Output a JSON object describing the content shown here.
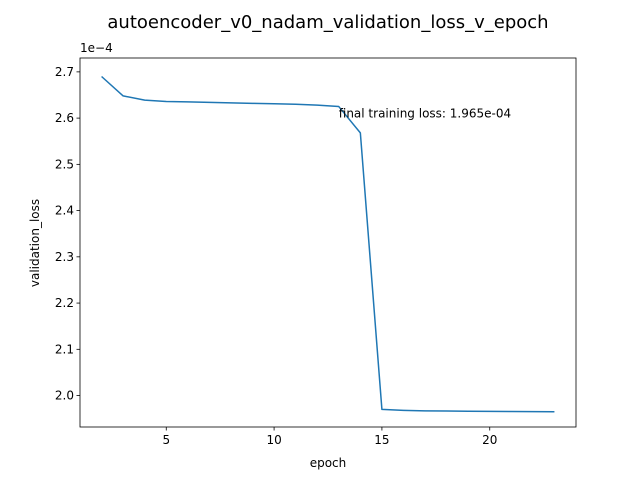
{
  "chart_data": {
    "type": "line",
    "title": "autoencoder_v0_nadam_validation_loss_v_epoch",
    "xlabel": "epoch",
    "ylabel": "validation_loss",
    "y_multiplier_label": "1e−4",
    "xlim": [
      1.0,
      24.0
    ],
    "ylim": [
      1.932,
      2.73
    ],
    "x_ticks": [
      5,
      10,
      15,
      20
    ],
    "x_tick_labels": [
      "5",
      "10",
      "15",
      "20"
    ],
    "y_ticks": [
      2.0,
      2.1,
      2.2,
      2.3,
      2.4,
      2.5,
      2.6,
      2.7
    ],
    "y_tick_labels": [
      "2.0",
      "2.1",
      "2.2",
      "2.3",
      "2.4",
      "2.5",
      "2.6",
      "2.7"
    ],
    "grid": false,
    "series": [
      {
        "color": "#1f77b4",
        "x": [
          2,
          3,
          4,
          5,
          6,
          7,
          8,
          9,
          10,
          11,
          12,
          13,
          14,
          15,
          16,
          17,
          18,
          19,
          20,
          21,
          22,
          23
        ],
        "y": [
          2.69,
          2.648,
          2.639,
          2.636,
          2.635,
          2.634,
          2.633,
          2.632,
          2.631,
          2.63,
          2.628,
          2.625,
          2.568,
          1.97,
          1.968,
          1.967,
          1.9665,
          1.966,
          1.9657,
          1.9655,
          1.9652,
          1.965
        ]
      }
    ],
    "annotation": {
      "text": "final training loss: 1.965e-04",
      "x": 13,
      "y": 2.61
    }
  }
}
